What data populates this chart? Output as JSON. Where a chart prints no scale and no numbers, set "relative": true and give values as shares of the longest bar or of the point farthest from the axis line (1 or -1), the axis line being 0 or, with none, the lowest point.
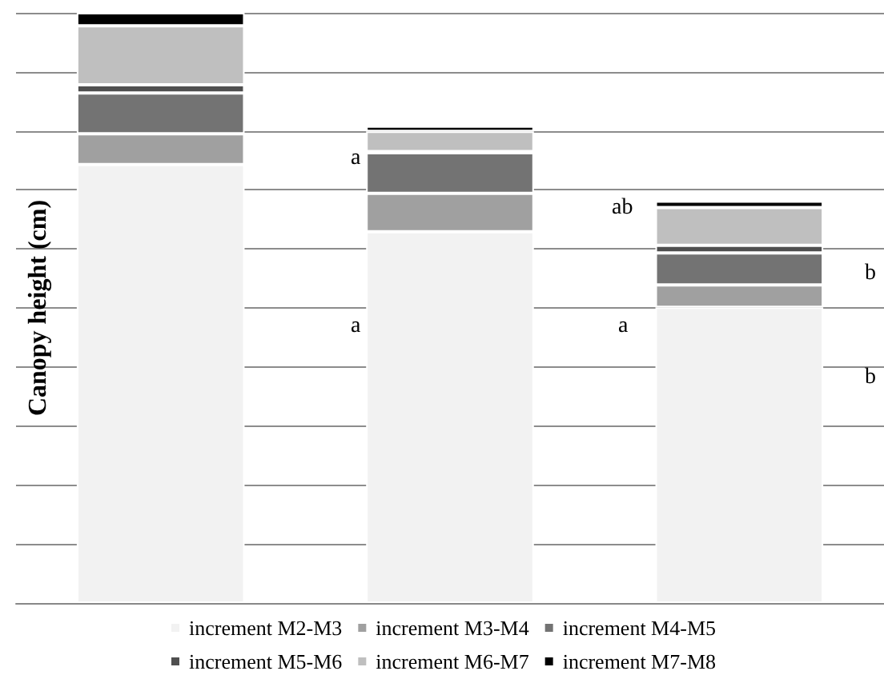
{
  "chart_data": {
    "type": "bar",
    "stacked": true,
    "relative": true,
    "ylabel": "Canopy height (cm)",
    "categories": [
      null,
      null,
      null
    ],
    "series": [
      {
        "name": "increment M2-M3",
        "color": "#f2f2f2",
        "values": [
          0.743,
          0.629,
          0.501
        ]
      },
      {
        "name": "increment M3-M4",
        "color": "#a0a0a0",
        "values": [
          0.052,
          0.065,
          0.038
        ]
      },
      {
        "name": "increment M4-M5",
        "color": "#737373",
        "values": [
          0.069,
          0.069,
          0.054
        ]
      },
      {
        "name": "increment M5-M6",
        "color": "#4f4f4f",
        "values": [
          0.014,
          0.002,
          0.013
        ]
      },
      {
        "name": "increment M6-M7",
        "color": "#bfbfbf",
        "values": [
          0.1,
          0.034,
          0.064
        ]
      },
      {
        "name": "increment M7-M8",
        "color": "#000000",
        "values": [
          0.022,
          0.009,
          0.011
        ]
      }
    ],
    "annotations": [
      "a",
      "ab",
      "b",
      "a",
      "a",
      "b"
    ],
    "grid": true,
    "legend": "bottom"
  }
}
